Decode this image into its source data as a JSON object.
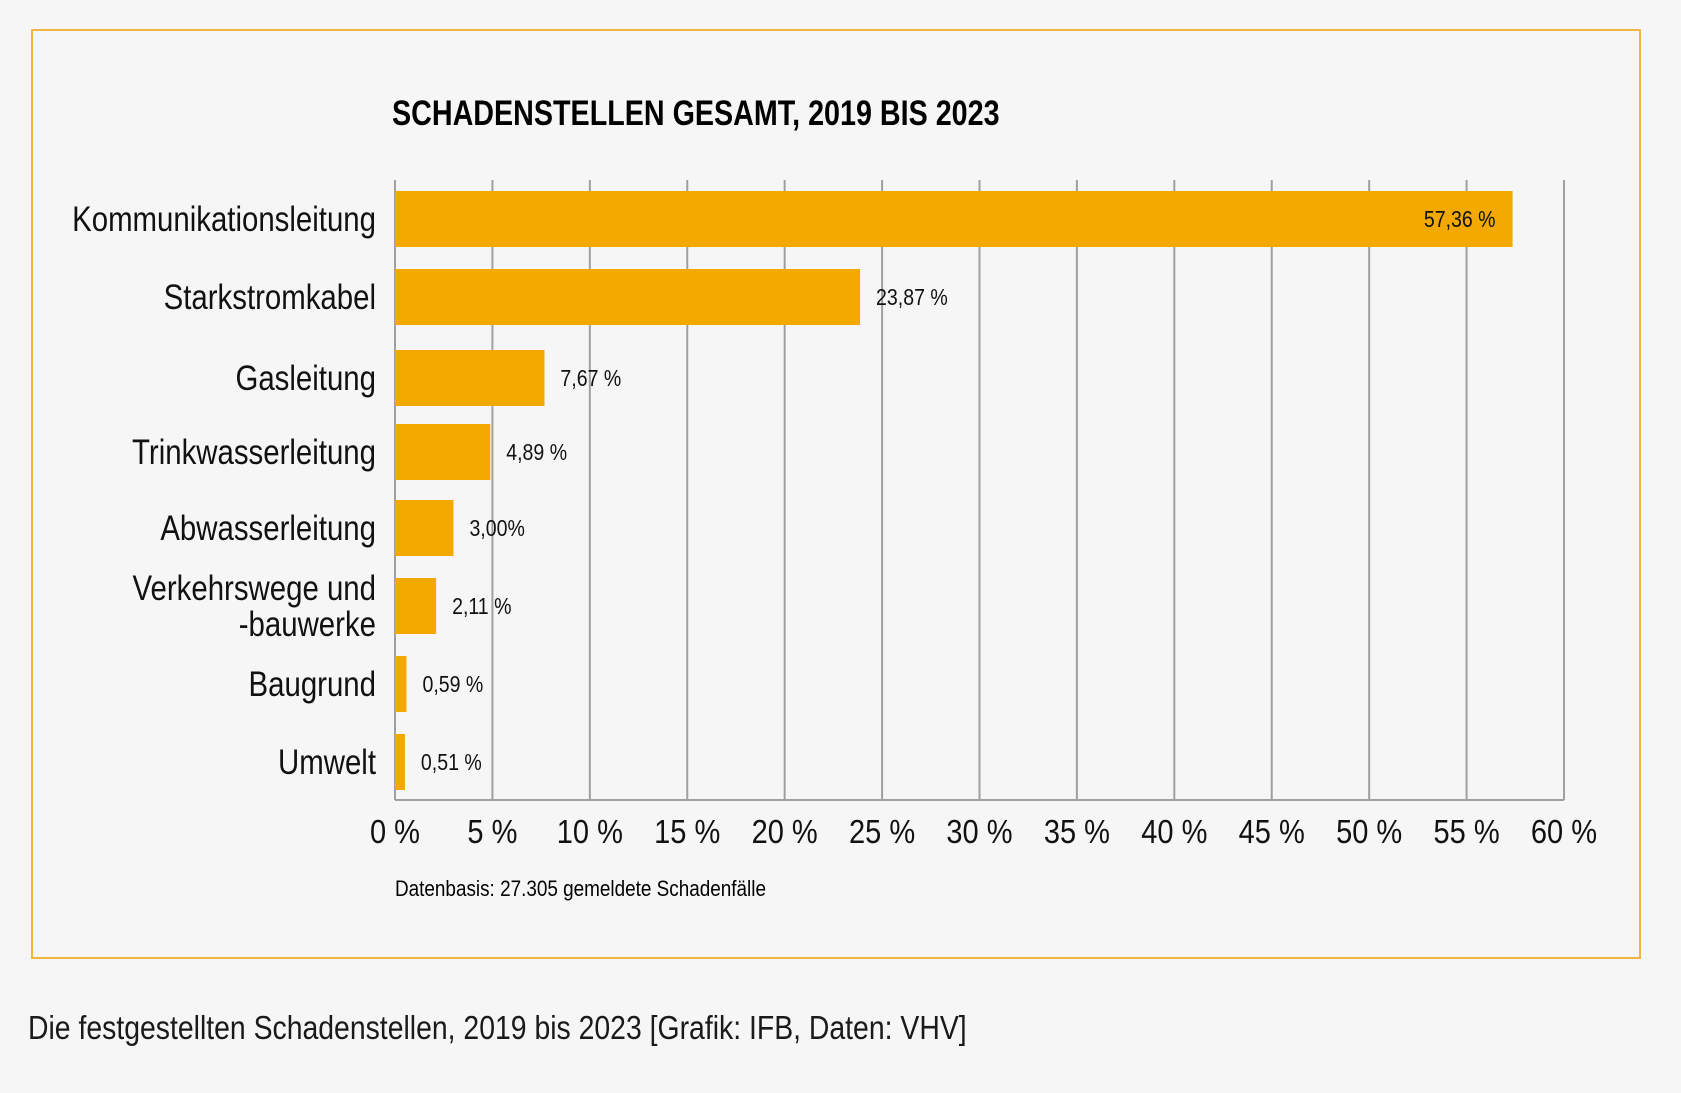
{
  "chart_data": {
    "type": "bar",
    "orientation": "horizontal",
    "title": "SCHADENSTELLEN GESAMT, 2019 BIS 2023",
    "categories": [
      [
        "Kommunikationsleitung"
      ],
      [
        "Starkstromkabel"
      ],
      [
        "Gasleitung"
      ],
      [
        "Trinkwasserleitung"
      ],
      [
        "Abwasserleitung"
      ],
      [
        "Verkehrswege und",
        "-bauwerke"
      ],
      [
        "Baugrund"
      ],
      [
        "Umwelt"
      ]
    ],
    "values": [
      57.36,
      23.87,
      7.67,
      4.89,
      3.0,
      2.11,
      0.59,
      0.51
    ],
    "value_labels": [
      "57,36 %",
      "23,87 %",
      "7,67 %",
      "4,89 %",
      "3,00%",
      "2,11 %",
      "0,59 %",
      "0,51 %"
    ],
    "xlim": [
      0,
      60
    ],
    "xticks": [
      0,
      5,
      10,
      15,
      20,
      25,
      30,
      35,
      40,
      45,
      50,
      55,
      60
    ],
    "xtick_labels": [
      "0 %",
      "5 %",
      "10 %",
      "15 %",
      "20 %",
      "25 %",
      "30 %",
      "35 %",
      "40 %",
      "45 %",
      "50 %",
      "55 %",
      "60 %"
    ],
    "grid": "vertical",
    "source_note": "Datenbasis: 27.305 gemeldete Schadenfälle"
  },
  "caption": "Die festgestellten Schadenstellen, 2019 bis 2023 [Grafik: IFB, Daten: VHV]",
  "colors": {
    "bar": "#f3a900",
    "frame": "#f0b640",
    "grid": "#a0a0a0",
    "background": "#f6f6f6"
  }
}
